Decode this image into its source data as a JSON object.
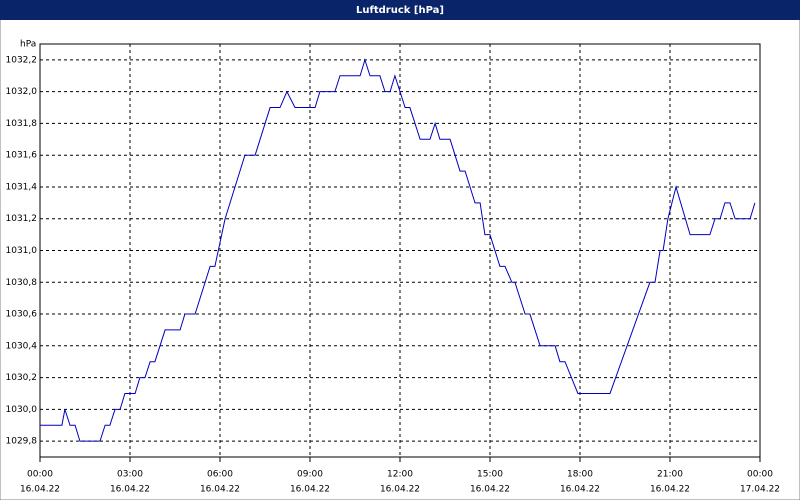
{
  "chart_data": {
    "type": "line",
    "title": "Luftdruck [hPa]",
    "ylabel": "hPa",
    "x": [
      0,
      0.73,
      0.83,
      1.0,
      1.17,
      1.33,
      2.0,
      2.17,
      2.33,
      2.5,
      2.67,
      2.83,
      3.17,
      3.33,
      3.5,
      3.67,
      3.83,
      4.17,
      4.67,
      4.83,
      5.17,
      5.67,
      5.83,
      6.17,
      6.83,
      7.17,
      7.67,
      8.0,
      8.23,
      8.5,
      9.17,
      9.33,
      9.83,
      10.0,
      10.67,
      10.83,
      11.0,
      11.33,
      11.5,
      11.67,
      11.83,
      12.17,
      12.33,
      12.67,
      13.0,
      13.17,
      13.33,
      13.67,
      14.0,
      14.17,
      14.5,
      14.67,
      14.83,
      15.0,
      15.33,
      15.5,
      15.73,
      15.83,
      16.17,
      16.33,
      16.67,
      17.17,
      17.33,
      17.5,
      17.93,
      19.0,
      20.33,
      20.5,
      20.67,
      20.77,
      20.93,
      21.2,
      21.67,
      22.33,
      22.5,
      22.67,
      22.83,
      23.0,
      23.17,
      23.67,
      23.83
    ],
    "series": [
      {
        "name": "Luftdruck",
        "color": "#0000c0",
        "values": [
          1029.9,
          1029.9,
          1030.0,
          1029.9,
          1029.9,
          1029.8,
          1029.8,
          1029.9,
          1029.9,
          1030.0,
          1030.0,
          1030.1,
          1030.1,
          1030.2,
          1030.2,
          1030.3,
          1030.3,
          1030.5,
          1030.5,
          1030.6,
          1030.6,
          1030.9,
          1030.9,
          1031.2,
          1031.6,
          1031.6,
          1031.9,
          1031.9,
          1032.0,
          1031.9,
          1031.9,
          1032.0,
          1032.0,
          1032.1,
          1032.1,
          1032.2,
          1032.1,
          1032.1,
          1032.0,
          1032.0,
          1032.1,
          1031.9,
          1031.9,
          1031.7,
          1031.7,
          1031.8,
          1031.7,
          1031.7,
          1031.5,
          1031.5,
          1031.3,
          1031.3,
          1031.1,
          1031.1,
          1030.9,
          1030.9,
          1030.8,
          1030.8,
          1030.6,
          1030.6,
          1030.4,
          1030.4,
          1030.3,
          1030.3,
          1030.1,
          1030.1,
          1030.8,
          1030.8,
          1031.0,
          1031.0,
          1031.2,
          1031.4,
          1031.1,
          1031.1,
          1031.2,
          1031.2,
          1031.3,
          1031.3,
          1031.2,
          1031.2,
          1031.3
        ]
      }
    ],
    "xlim": [
      0,
      24
    ],
    "xticks": [
      {
        "value": 0,
        "label": "00:00"
      },
      {
        "value": 3,
        "label": "03:00"
      },
      {
        "value": 6,
        "label": "06:00"
      },
      {
        "value": 9,
        "label": "09:00"
      },
      {
        "value": 12,
        "label": "12:00"
      },
      {
        "value": 15,
        "label": "15:00"
      },
      {
        "value": 18,
        "label": "18:00"
      },
      {
        "value": 21,
        "label": "21:00"
      },
      {
        "value": 24,
        "label": "00:00"
      }
    ],
    "xtick_dates": [
      "16.04.22",
      "16.04.22",
      "16.04.22",
      "16.04.22",
      "16.04.22",
      "16.04.22",
      "16.04.22",
      "16.04.22",
      "17.04.22"
    ],
    "ylim": [
      1029.7,
      1032.3
    ],
    "yticks": [
      {
        "value": 1029.8,
        "label": "1029,8"
      },
      {
        "value": 1030.0,
        "label": "1030,0"
      },
      {
        "value": 1030.2,
        "label": "1030,2"
      },
      {
        "value": 1030.4,
        "label": "1030,4"
      },
      {
        "value": 1030.6,
        "label": "1030,6"
      },
      {
        "value": 1030.8,
        "label": "1030,8"
      },
      {
        "value": 1031.0,
        "label": "1031,0"
      },
      {
        "value": 1031.2,
        "label": "1031,2"
      },
      {
        "value": 1031.4,
        "label": "1031,4"
      },
      {
        "value": 1031.6,
        "label": "1031,6"
      },
      {
        "value": 1031.8,
        "label": "1031,8"
      },
      {
        "value": 1032.0,
        "label": "1032,0"
      },
      {
        "value": 1032.2,
        "label": "1032,2"
      }
    ],
    "grid": true
  }
}
